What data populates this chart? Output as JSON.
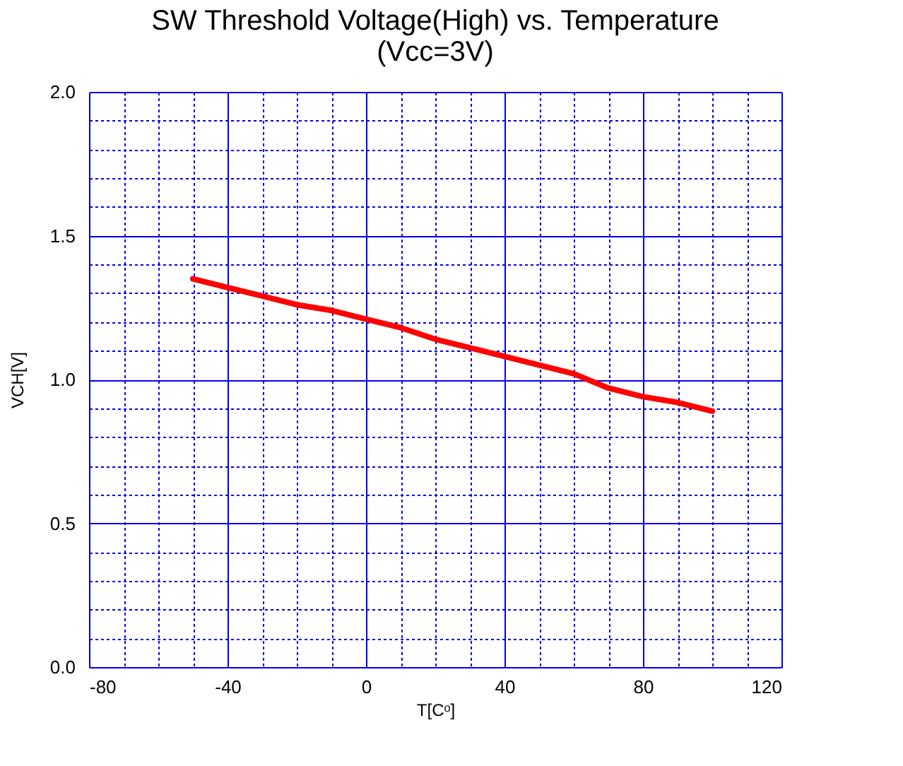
{
  "chart_data": {
    "type": "line",
    "title": "SW Threshold Voltage(High) vs. Temperature (Vcc=3V)",
    "xlabel": "T[Cᵒ]",
    "ylabel": "VCH[V]",
    "x": [
      -50,
      -40,
      -30,
      -20,
      -10,
      0,
      10,
      20,
      30,
      40,
      50,
      60,
      70,
      80,
      90,
      100
    ],
    "series": [
      {
        "color": "#ff0000",
        "values": [
          1.35,
          1.32,
          1.29,
          1.26,
          1.24,
          1.21,
          1.18,
          1.14,
          1.11,
          1.08,
          1.05,
          1.02,
          0.97,
          0.94,
          0.92,
          0.89
        ]
      }
    ],
    "xlim": [
      -80,
      120
    ],
    "ylim": [
      0,
      2.0
    ],
    "xticks": [
      -80,
      {
        "value": -70,
        "label": null
      },
      {
        "value": -60,
        "label": null
      },
      {
        "value": -50,
        "label": null
      },
      -40,
      {
        "value": -30,
        "label": null
      },
      {
        "value": -20,
        "label": null
      },
      {
        "value": -10,
        "label": null
      },
      0,
      {
        "value": 10,
        "label": null
      },
      {
        "value": 20,
        "label": null
      },
      {
        "value": 30,
        "label": null
      },
      40,
      {
        "value": 50,
        "label": null
      },
      {
        "value": 60,
        "label": null
      },
      {
        "value": 70,
        "label": null
      },
      80,
      {
        "value": 90,
        "label": null
      },
      {
        "value": 100,
        "label": null
      },
      {
        "value": 110,
        "label": null
      },
      120
    ],
    "yticks": [
      {
        "value": 0,
        "label": "0.0"
      },
      {
        "value": 0.1,
        "label": null
      },
      {
        "value": 0.2,
        "label": null
      },
      {
        "value": 0.3,
        "label": null
      },
      {
        "value": 0.4,
        "label": null
      },
      0.5,
      {
        "value": 0.6,
        "label": null
      },
      {
        "value": 0.7,
        "label": null
      },
      {
        "value": 0.8,
        "label": null
      },
      {
        "value": 0.9,
        "label": null
      },
      {
        "value": 1,
        "label": "1.0"
      },
      {
        "value": 1.1,
        "label": null
      },
      {
        "value": 1.2,
        "label": null
      },
      {
        "value": 1.3,
        "label": null
      },
      {
        "value": 1.4,
        "label": null
      },
      1.5,
      {
        "value": 1.6,
        "label": null
      },
      {
        "value": 1.7,
        "label": null
      },
      {
        "value": 1.8,
        "label": null
      },
      {
        "value": 1.9,
        "label": null
      },
      {
        "value": 2,
        "label": "2.0"
      }
    ],
    "grid": true,
    "marker": "none",
    "line_style": "solid"
  }
}
